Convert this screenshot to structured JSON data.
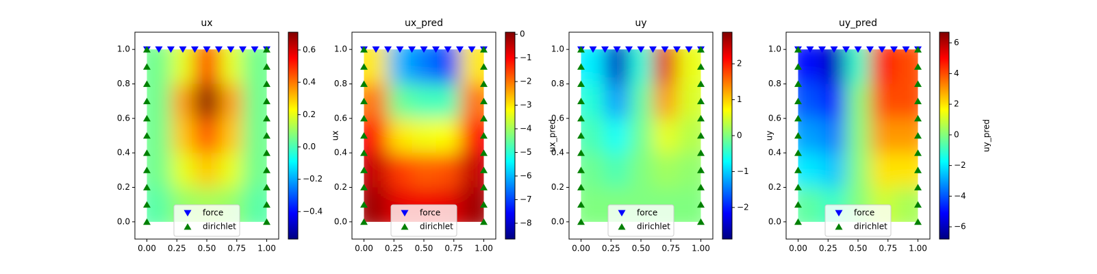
{
  "chart_data": [
    {
      "type": "tripcolor",
      "title": "ux",
      "colorbar_label": "ux",
      "colormap": "jet",
      "xlim": [
        -0.1,
        1.1
      ],
      "ylim": [
        -0.1,
        1.1
      ],
      "clim": [
        -0.57,
        0.71
      ],
      "xticks": [
        {
          "value": 0,
          "label": "0.00"
        },
        {
          "value": 0.25,
          "label": "0.25"
        },
        {
          "value": 0.5,
          "label": "0.50"
        },
        {
          "value": 0.75,
          "label": "0.75"
        },
        {
          "value": 1,
          "label": "1.00"
        }
      ],
      "yticks": [
        {
          "value": 0,
          "label": "0.0"
        },
        {
          "value": 0.2,
          "label": "0.2"
        },
        {
          "value": 0.4,
          "label": "0.4"
        },
        {
          "value": 0.6,
          "label": "0.6"
        },
        {
          "value": 0.8,
          "label": "0.8"
        },
        {
          "value": 1,
          "label": "1.0"
        }
      ],
      "cticks": [
        {
          "value": -0.4,
          "label": "−0.4"
        },
        {
          "value": -0.2,
          "label": "−0.2"
        },
        {
          "value": 0,
          "label": "0.0"
        },
        {
          "value": 0.2,
          "label": "0.2"
        },
        {
          "value": 0.4,
          "label": "0.4"
        },
        {
          "value": 0.6,
          "label": "0.6"
        }
      ],
      "z": [
        [
          0.05,
          0.2,
          0.5,
          0.2,
          0.05
        ],
        [
          0.05,
          0.35,
          0.7,
          0.35,
          0.05
        ],
        [
          0.05,
          0.3,
          0.45,
          0.3,
          0.05
        ],
        [
          0.05,
          0.2,
          0.3,
          0.2,
          0.05
        ],
        [
          0.02,
          0.1,
          0.12,
          0.1,
          0.02
        ]
      ],
      "series": [
        {
          "name": "force",
          "color": "#0000ff",
          "marker": "down",
          "x": [
            0,
            0.1,
            0.2,
            0.3,
            0.4,
            0.5,
            0.6,
            0.7,
            0.8,
            0.9,
            1
          ],
          "y": [
            1,
            1,
            1,
            1,
            1,
            1,
            1,
            1,
            1,
            1,
            1
          ]
        },
        {
          "name": "dirichlet",
          "color": "#008000",
          "marker": "up",
          "x": [
            0,
            0,
            0,
            0,
            0,
            0,
            0,
            0,
            0,
            0,
            0,
            1,
            1,
            1,
            1,
            1,
            1,
            1,
            1,
            1,
            1,
            1
          ],
          "y": [
            0,
            0.1,
            0.2,
            0.3,
            0.4,
            0.5,
            0.6,
            0.7,
            0.8,
            0.9,
            1,
            0,
            0.1,
            0.2,
            0.3,
            0.4,
            0.5,
            0.6,
            0.7,
            0.8,
            0.9,
            1
          ]
        }
      ],
      "legend": "lower center"
    },
    {
      "type": "tripcolor",
      "title": "ux_pred",
      "colorbar_label": "ux_pred",
      "colormap": "jet",
      "xlim": [
        -0.1,
        1.1
      ],
      "ylim": [
        -0.1,
        1.1
      ],
      "clim": [
        -8.67,
        0.09
      ],
      "xticks": [
        {
          "value": 0,
          "label": "0.00"
        },
        {
          "value": 0.25,
          "label": "0.25"
        },
        {
          "value": 0.5,
          "label": "0.50"
        },
        {
          "value": 0.75,
          "label": "0.75"
        },
        {
          "value": 1,
          "label": "1.00"
        }
      ],
      "yticks": [
        {
          "value": 0,
          "label": "0.0"
        },
        {
          "value": 0.2,
          "label": "0.2"
        },
        {
          "value": 0.4,
          "label": "0.4"
        },
        {
          "value": 0.6,
          "label": "0.6"
        },
        {
          "value": 0.8,
          "label": "0.8"
        },
        {
          "value": 1,
          "label": "1.0"
        }
      ],
      "cticks": [
        0,
        {
          "value": -1,
          "label": "−1"
        },
        {
          "value": -2,
          "label": "−2"
        },
        {
          "value": -3,
          "label": "−3"
        },
        {
          "value": -4,
          "label": "−4"
        },
        {
          "value": -5,
          "label": "−5"
        },
        {
          "value": -6,
          "label": "−6"
        },
        {
          "value": -7,
          "label": "−7"
        },
        {
          "value": -8,
          "label": "−8"
        }
      ],
      "z": [
        [
          -3,
          -6,
          -6.5,
          -7,
          -3
        ],
        [
          -2,
          -4.5,
          -4.8,
          -4.8,
          -2
        ],
        [
          -1,
          -3,
          -3.3,
          -3.2,
          -1
        ],
        [
          -0.5,
          -1.5,
          -1.8,
          -1.7,
          -0.5
        ],
        [
          -0.2,
          -0.8,
          -0.9,
          -0.8,
          -0.2
        ]
      ],
      "series": [
        {
          "name": "force",
          "color": "#0000ff",
          "marker": "down",
          "x": [
            0,
            0.1,
            0.2,
            0.3,
            0.4,
            0.5,
            0.6,
            0.7,
            0.8,
            0.9,
            1
          ],
          "y": [
            1,
            1,
            1,
            1,
            1,
            1,
            1,
            1,
            1,
            1,
            1
          ]
        },
        {
          "name": "dirichlet",
          "color": "#008000",
          "marker": "up",
          "x": [
            0,
            0,
            0,
            0,
            0,
            0,
            0,
            0,
            0,
            0,
            0,
            1,
            1,
            1,
            1,
            1,
            1,
            1,
            1,
            1,
            1,
            1
          ],
          "y": [
            0,
            0.1,
            0.2,
            0.3,
            0.4,
            0.5,
            0.6,
            0.7,
            0.8,
            0.9,
            1,
            0,
            0.1,
            0.2,
            0.3,
            0.4,
            0.5,
            0.6,
            0.7,
            0.8,
            0.9,
            1
          ]
        }
      ],
      "legend": "lower center"
    },
    {
      "type": "tripcolor",
      "title": "uy",
      "colorbar_label": "uy",
      "colormap": "jet",
      "xlim": [
        -0.1,
        1.1
      ],
      "ylim": [
        -0.1,
        1.1
      ],
      "clim": [
        -2.88,
        2.88
      ],
      "xticks": [
        {
          "value": 0,
          "label": "0.00"
        },
        {
          "value": 0.25,
          "label": "0.25"
        },
        {
          "value": 0.5,
          "label": "0.50"
        },
        {
          "value": 0.75,
          "label": "0.75"
        },
        {
          "value": 1,
          "label": "1.00"
        }
      ],
      "yticks": [
        {
          "value": 0,
          "label": "0.0"
        },
        {
          "value": 0.2,
          "label": "0.2"
        },
        {
          "value": 0.4,
          "label": "0.4"
        },
        {
          "value": 0.6,
          "label": "0.6"
        },
        {
          "value": 0.8,
          "label": "0.8"
        },
        {
          "value": 1,
          "label": "1.0"
        }
      ],
      "cticks": [
        {
          "value": -2,
          "label": "−2"
        },
        {
          "value": -1,
          "label": "−1"
        },
        0,
        1,
        2
      ],
      "z": [
        [
          -0.8,
          -2.5,
          -0.5,
          2.3,
          0.6
        ],
        [
          -0.5,
          -1.3,
          -0.2,
          1.3,
          0.5
        ],
        [
          -0.3,
          -0.7,
          -0.1,
          0.6,
          0.3
        ],
        [
          -0.1,
          -0.3,
          0,
          0.2,
          0.1
        ],
        [
          0,
          0,
          0,
          0,
          0
        ]
      ],
      "series": [
        {
          "name": "force",
          "color": "#0000ff",
          "marker": "down",
          "x": [
            0,
            0.1,
            0.2,
            0.3,
            0.4,
            0.5,
            0.6,
            0.7,
            0.8,
            0.9,
            1
          ],
          "y": [
            1,
            1,
            1,
            1,
            1,
            1,
            1,
            1,
            1,
            1,
            1
          ]
        },
        {
          "name": "dirichlet",
          "color": "#008000",
          "marker": "up",
          "x": [
            0,
            0,
            0,
            0,
            0,
            0,
            0,
            0,
            0,
            0,
            0,
            1,
            1,
            1,
            1,
            1,
            1,
            1,
            1,
            1,
            1,
            1
          ],
          "y": [
            0,
            0.1,
            0.2,
            0.3,
            0.4,
            0.5,
            0.6,
            0.7,
            0.8,
            0.9,
            1,
            0,
            0.1,
            0.2,
            0.3,
            0.4,
            0.5,
            0.6,
            0.7,
            0.8,
            0.9,
            1
          ]
        }
      ],
      "legend": "lower center"
    },
    {
      "type": "tripcolor",
      "title": "uy_pred",
      "colorbar_label": "uy_pred",
      "colormap": "jet",
      "xlim": [
        -0.1,
        1.1
      ],
      "ylim": [
        -0.1,
        1.1
      ],
      "clim": [
        -6.8,
        6.7
      ],
      "xticks": [
        {
          "value": 0,
          "label": "0.00"
        },
        {
          "value": 0.25,
          "label": "0.25"
        },
        {
          "value": 0.5,
          "label": "0.50"
        },
        {
          "value": 0.75,
          "label": "0.75"
        },
        {
          "value": 1,
          "label": "1.00"
        }
      ],
      "yticks": [
        {
          "value": 0,
          "label": "0.0"
        },
        {
          "value": 0.2,
          "label": "0.2"
        },
        {
          "value": 0.4,
          "label": "0.4"
        },
        {
          "value": 0.6,
          "label": "0.6"
        },
        {
          "value": 0.8,
          "label": "0.8"
        },
        {
          "value": 1,
          "label": "1.0"
        }
      ],
      "cticks": [
        {
          "value": -6,
          "label": "−6"
        },
        {
          "value": -4,
          "label": "−4"
        },
        {
          "value": -2,
          "label": "−2"
        },
        0,
        2,
        4,
        6
      ],
      "z": [
        [
          -5,
          -6,
          -1,
          5,
          4
        ],
        [
          -4,
          -5,
          0,
          4,
          4
        ],
        [
          -3,
          -3.5,
          0,
          3,
          3
        ],
        [
          -2,
          -2.5,
          0,
          2,
          2
        ],
        [
          -0.5,
          -1,
          0,
          1,
          0.5
        ]
      ],
      "series": [
        {
          "name": "force",
          "color": "#0000ff",
          "marker": "down",
          "x": [
            0,
            0.1,
            0.2,
            0.3,
            0.4,
            0.5,
            0.6,
            0.7,
            0.8,
            0.9,
            1
          ],
          "y": [
            1,
            1,
            1,
            1,
            1,
            1,
            1,
            1,
            1,
            1,
            1
          ]
        },
        {
          "name": "dirichlet",
          "color": "#008000",
          "marker": "up",
          "x": [
            0,
            0,
            0,
            0,
            0,
            0,
            0,
            0,
            0,
            0,
            0,
            1,
            1,
            1,
            1,
            1,
            1,
            1,
            1,
            1,
            1,
            1
          ],
          "y": [
            0,
            0.1,
            0.2,
            0.3,
            0.4,
            0.5,
            0.6,
            0.7,
            0.8,
            0.9,
            1,
            0,
            0.1,
            0.2,
            0.3,
            0.4,
            0.5,
            0.6,
            0.7,
            0.8,
            0.9,
            1
          ]
        }
      ],
      "legend": "lower center"
    }
  ]
}
